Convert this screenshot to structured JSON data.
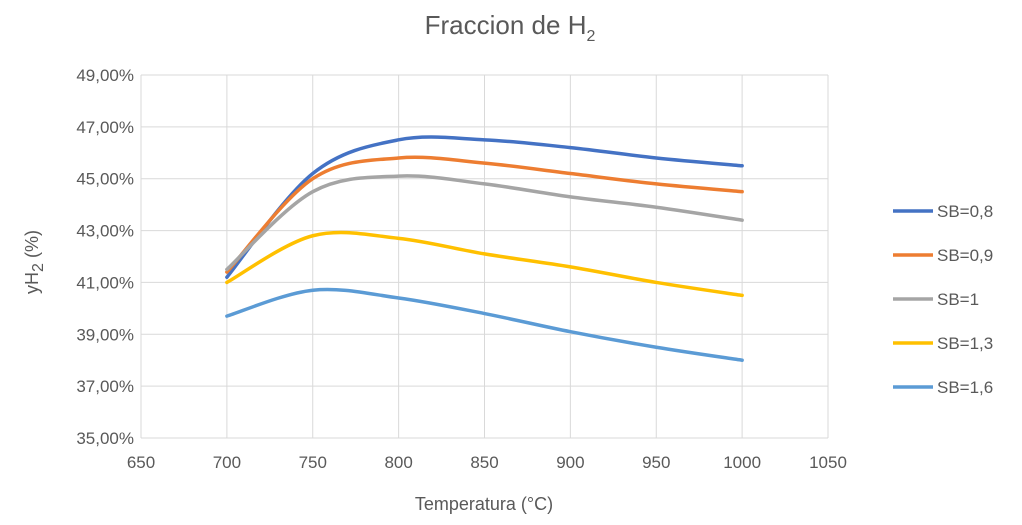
{
  "chart_data": {
    "type": "line",
    "title": "Fraccion de H",
    "title_subscript": "2",
    "xlabel": "Temperatura (°C)",
    "ylabel": "yH",
    "ylabel_subscript": "2",
    "ylabel_suffix": " (%)",
    "xlim": [
      650,
      1050
    ],
    "ylim": [
      35,
      49
    ],
    "x_ticks": [
      650,
      700,
      750,
      800,
      850,
      900,
      950,
      1000,
      1050
    ],
    "x_tick_labels": [
      "650",
      "700",
      "750",
      "800",
      "850",
      "900",
      "950",
      "1000",
      "1050"
    ],
    "y_ticks": [
      35,
      37,
      39,
      41,
      43,
      45,
      47,
      49
    ],
    "y_tick_labels": [
      "35,00%",
      "37,00%",
      "39,00%",
      "41,00%",
      "43,00%",
      "45,00%",
      "47,00%",
      "49,00%"
    ],
    "grid": true,
    "legend_position": "right",
    "x": [
      700,
      750,
      800,
      850,
      900,
      950,
      1000
    ],
    "series": [
      {
        "name": "SB=0,8",
        "color": "#4472C4",
        "values": [
          41.2,
          45.2,
          46.5,
          46.5,
          46.2,
          45.8,
          45.5
        ]
      },
      {
        "name": "SB=0,9",
        "color": "#ED7D31",
        "values": [
          41.4,
          45.0,
          45.8,
          45.6,
          45.2,
          44.8,
          44.5
        ]
      },
      {
        "name": "SB=1",
        "color": "#A5A5A5",
        "values": [
          41.5,
          44.5,
          45.1,
          44.8,
          44.3,
          43.9,
          43.4
        ]
      },
      {
        "name": "SB=1,3",
        "color": "#FFC000",
        "values": [
          41.0,
          42.8,
          42.7,
          42.1,
          41.6,
          41.0,
          40.5
        ]
      },
      {
        "name": "SB=1,6",
        "color": "#5B9BD5",
        "values": [
          39.7,
          40.7,
          40.4,
          39.8,
          39.1,
          38.5,
          38.0
        ]
      }
    ]
  }
}
